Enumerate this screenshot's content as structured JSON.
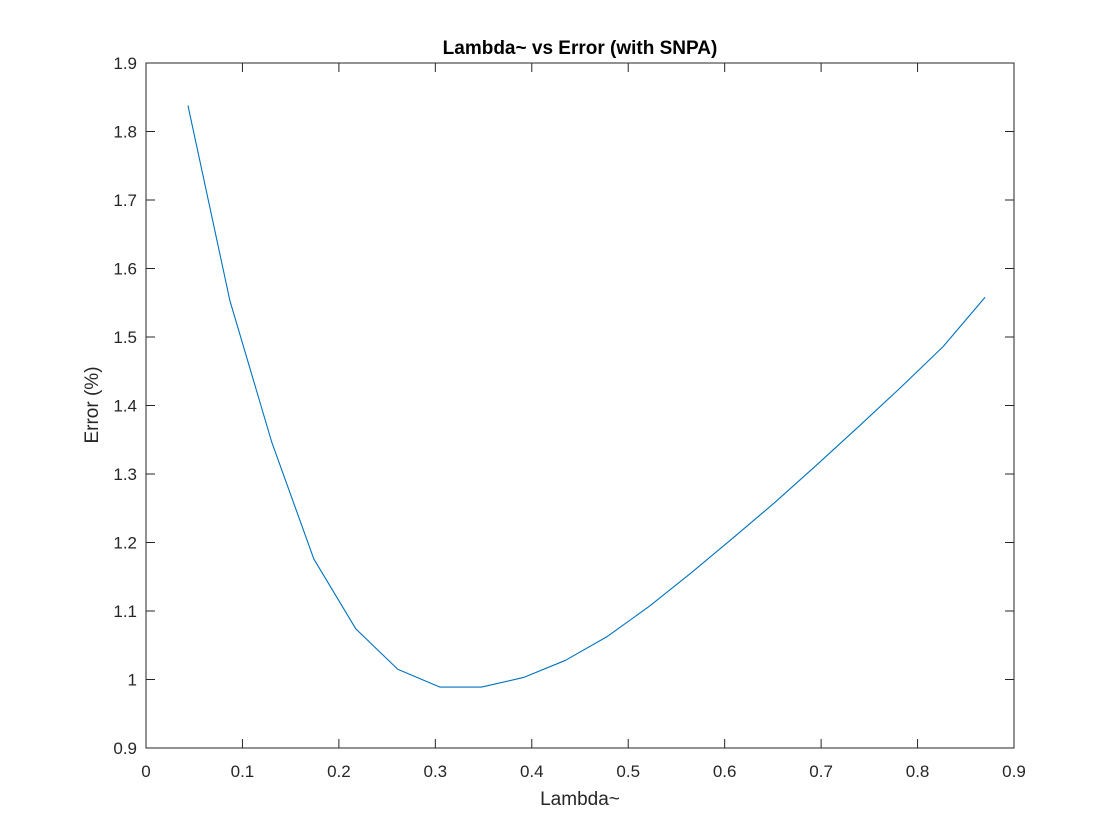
{
  "chart_data": {
    "type": "line",
    "title": "Lambda~ vs Error (with SNPA)",
    "xlabel": "Lambda~",
    "ylabel": "Error (%)",
    "xlim": [
      0,
      0.9
    ],
    "ylim": [
      0.9,
      1.9
    ],
    "xticks": [
      "0",
      "0.1",
      "0.2",
      "0.3",
      "0.4",
      "0.5",
      "0.6",
      "0.7",
      "0.8",
      "0.9"
    ],
    "yticks": [
      "0.9",
      "1",
      "1.1",
      "1.2",
      "1.3",
      "1.4",
      "1.5",
      "1.6",
      "1.7",
      "1.8",
      "1.9"
    ],
    "grid": false,
    "box": true,
    "series": [
      {
        "color": "#0072BD",
        "x": [
          0.0435,
          0.087,
          0.1305,
          0.174,
          0.2175,
          0.261,
          0.3045,
          0.348,
          0.3915,
          0.435,
          0.4785,
          0.522,
          0.5655,
          0.609,
          0.6525,
          0.696,
          0.7395,
          0.783,
          0.8265,
          0.87
        ],
        "y": [
          1.838,
          1.553,
          1.346,
          1.176,
          1.074,
          1.015,
          0.989,
          0.989,
          1.003,
          1.028,
          1.063,
          1.107,
          1.156,
          1.207,
          1.259,
          1.314,
          1.37,
          1.427,
          1.486,
          1.558
        ]
      }
    ]
  }
}
